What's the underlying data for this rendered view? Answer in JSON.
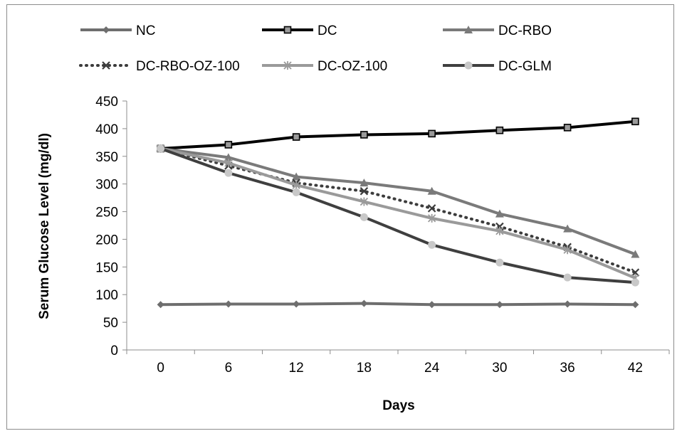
{
  "chart_data": {
    "type": "line",
    "title": "",
    "xlabel": "Days",
    "ylabel": "Serum Glucose Level (mg/dl)",
    "categories": [
      "0",
      "6",
      "12",
      "18",
      "24",
      "30",
      "36",
      "42"
    ],
    "ylim": [
      0,
      450
    ],
    "yticks": [
      "0",
      "50",
      "100",
      "150",
      "200",
      "250",
      "300",
      "350",
      "400",
      "450"
    ],
    "grid": false,
    "legend_position": "top",
    "series": [
      {
        "name": "NC",
        "color": "#6e6e6e",
        "dash": "solid",
        "marker": "diamond",
        "values": [
          82,
          83,
          83,
          84,
          82,
          82,
          83,
          82
        ]
      },
      {
        "name": "DC",
        "color": "#000000",
        "dash": "solid",
        "marker": "square",
        "values": [
          364,
          371,
          385,
          389,
          391,
          397,
          402,
          413
        ]
      },
      {
        "name": "DC-RBO",
        "color": "#7a7a7a",
        "dash": "solid",
        "marker": "triangle",
        "values": [
          364,
          348,
          313,
          302,
          287,
          246,
          219,
          173
        ]
      },
      {
        "name": "DC-RBO-OZ-100",
        "color": "#3c3c3c",
        "dash": "dotted",
        "marker": "x",
        "values": [
          364,
          333,
          302,
          287,
          256,
          223,
          186,
          140
        ]
      },
      {
        "name": "DC-OZ-100",
        "color": "#9a9a9a",
        "dash": "solid",
        "marker": "star",
        "values": [
          364,
          338,
          298,
          268,
          238,
          215,
          181,
          130
        ]
      },
      {
        "name": "DC-GLM",
        "color": "#3f3f3f",
        "dash": "solid",
        "marker": "circle",
        "values": [
          364,
          320,
          285,
          240,
          190,
          158,
          131,
          122
        ]
      }
    ]
  }
}
